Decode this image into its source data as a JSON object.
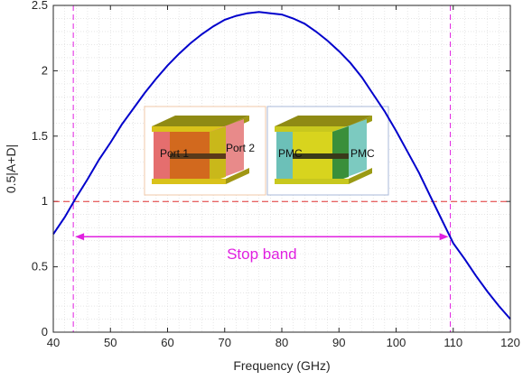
{
  "chart_data": {
    "type": "line",
    "title": "",
    "xlabel": "Frequency (GHz)",
    "ylabel": "0.5|A+D|",
    "xlim": [
      40,
      120
    ],
    "ylim": [
      0,
      2.5
    ],
    "xticks": [
      "40",
      "50",
      "60",
      "70",
      "80",
      "90",
      "100",
      "110",
      "120"
    ],
    "xtick_values": [
      40,
      50,
      60,
      70,
      80,
      90,
      100,
      110,
      120
    ],
    "yticks": [
      "0",
      "0.5",
      "1",
      "1.5",
      "2",
      "2.5"
    ],
    "ytick_values": [
      0,
      0.5,
      1,
      1.5,
      2,
      2.5
    ],
    "grid": "minor dotted",
    "series": [
      {
        "color": "#0000cc",
        "x": [
          40,
          42,
          44,
          46,
          48,
          50,
          52,
          54,
          56,
          58,
          60,
          62,
          64,
          66,
          68,
          70,
          72,
          74,
          76,
          78,
          80,
          82,
          84,
          86,
          88,
          90,
          92,
          94,
          96,
          98,
          100,
          102,
          104,
          106,
          108,
          110,
          112,
          114,
          116,
          118,
          120
        ],
        "y": [
          0.75,
          0.88,
          1.03,
          1.17,
          1.32,
          1.45,
          1.59,
          1.71,
          1.83,
          1.94,
          2.04,
          2.13,
          2.21,
          2.28,
          2.34,
          2.39,
          2.42,
          2.44,
          2.45,
          2.44,
          2.43,
          2.4,
          2.36,
          2.3,
          2.23,
          2.15,
          2.06,
          1.95,
          1.82,
          1.69,
          1.54,
          1.38,
          1.22,
          1.04,
          0.86,
          0.68,
          0.56,
          0.43,
          0.31,
          0.2,
          0.1
        ]
      }
    ],
    "reference_lines": {
      "horizontal_y": 1.0,
      "horizontal_color": "#e03030",
      "vertical_x": [
        43.5,
        109.5
      ],
      "vertical_color": "#e020e0"
    },
    "annotation": {
      "text": "Stop band",
      "x_from": 43.5,
      "x_to": 109.5,
      "y_arrow": 0.73,
      "y_text": 0.6,
      "color": "#e020e0"
    },
    "insets": [
      {
        "labels": [
          "Port 1",
          "Port 2"
        ],
        "colors": [
          "#d9c21a",
          "#e56e6e",
          "#d2691e"
        ]
      },
      {
        "labels": [
          "PMC",
          "PMC"
        ],
        "colors": [
          "#c8c81e",
          "#6cc0b8",
          "#3a8f3a"
        ]
      }
    ]
  }
}
